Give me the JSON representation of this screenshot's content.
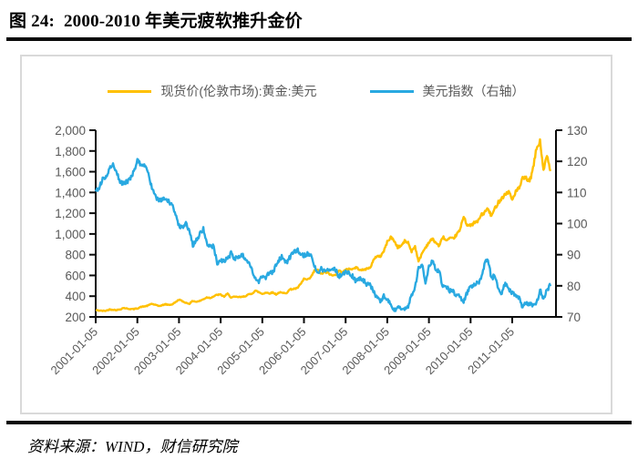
{
  "page": {
    "title": "图 24:  2000-2010 年美元疲软推升金价",
    "source": "资料来源：WIND，财信研究院"
  },
  "chart_data": {
    "type": "line",
    "title": "图 24: 2000-2010 年美元疲软推升金价",
    "x_unit": "month",
    "x_range": [
      "2001-01",
      "2011-12"
    ],
    "x_tick_labels": [
      "2001-01-05",
      "2002-01-05",
      "2003-01-05",
      "2004-01-05",
      "2005-01-05",
      "2006-01-05",
      "2007-01-05",
      "2008-01-05",
      "2009-01-05",
      "2010-01-05",
      "2011-01-05"
    ],
    "left_axis": {
      "min": 200,
      "max": 2000,
      "step": 200,
      "tick_labels": [
        "2,000",
        "1,800",
        "1,600",
        "1,400",
        "1,200",
        "1,000",
        "800",
        "600",
        "400",
        "200"
      ]
    },
    "right_axis": {
      "min": 70,
      "max": 130,
      "step": 10,
      "tick_labels": [
        "130",
        "120",
        "110",
        "100",
        "90",
        "80",
        "70"
      ]
    },
    "colors": {
      "gold": "#FFC000",
      "usd_index": "#29A9E1",
      "axis": "#0a0a0a",
      "tick_text": "#595959"
    },
    "legend_position": "top-center",
    "grid": false,
    "series": [
      {
        "name": "现货价(伦敦市场):黄金:美元",
        "color": "#FFC000",
        "axis": "left",
        "monthly_values": [
          265,
          262,
          258,
          260,
          272,
          270,
          266,
          272,
          287,
          280,
          276,
          276,
          282,
          296,
          301,
          308,
          327,
          318,
          306,
          310,
          322,
          317,
          320,
          342,
          368,
          350,
          336,
          328,
          355,
          346,
          354,
          370,
          388,
          384,
          398,
          414,
          414,
          396,
          423,
          388,
          393,
          392,
          391,
          400,
          415,
          425,
          453,
          438,
          422,
          435,
          428,
          435,
          418,
          437,
          429,
          433,
          466,
          470,
          476,
          513,
          568,
          556,
          582,
          644,
          653,
          613,
          632,
          623,
          599,
          603,
          646,
          632,
          651,
          665,
          661,
          677,
          659,
          650,
          665,
          672,
          743,
          789,
          783,
          834,
          923,
          971,
          933,
          871,
          885,
          930,
          918,
          833,
          884,
          730,
          814,
          869,
          919,
          952,
          916,
          883,
          975,
          934,
          953,
          955,
          995,
          1040,
          1175,
          1087,
          1078,
          1108,
          1115,
          1179,
          1207,
          1244,
          1169,
          1246,
          1307,
          1346,
          1383,
          1410,
          1327,
          1411,
          1439,
          1535,
          1536,
          1505,
          1628,
          1826,
          1890,
          1620,
          1750,
          1600
        ]
      },
      {
        "name": "美元指数（右轴）",
        "color": "#29A9E1",
        "axis": "right",
        "monthly_values": [
          110.5,
          111.5,
          114.5,
          114.8,
          117.5,
          118.8,
          116.6,
          113.4,
          113.0,
          113.5,
          114.3,
          116.7,
          120.2,
          119.2,
          118.8,
          116.5,
          112.5,
          108.8,
          107.5,
          107.3,
          108.2,
          107.0,
          106.3,
          102.3,
          99.6,
          98.6,
          100.2,
          97.0,
          93.1,
          94.7,
          96.5,
          98.5,
          93.4,
          92.4,
          92.6,
          87.4,
          88.4,
          87.9,
          88.7,
          90.5,
          88.8,
          88.9,
          90.1,
          88.9,
          87.8,
          85.0,
          82.0,
          80.9,
          83.4,
          82.5,
          84.2,
          84.2,
          86.6,
          88.9,
          89.4,
          87.2,
          89.2,
          90.7,
          91.7,
          90.6,
          89.7,
          90.2,
          89.4,
          86.1,
          84.0,
          85.4,
          85.0,
          84.9,
          85.7,
          85.3,
          83.1,
          83.4,
          84.9,
          83.9,
          83.1,
          81.4,
          82.2,
          81.9,
          80.7,
          80.7,
          78.0,
          76.5,
          75.0,
          76.7,
          75.5,
          73.7,
          72.0,
          72.8,
          72.9,
          72.5,
          73.4,
          77.2,
          79.5,
          85.5,
          86.9,
          81.2,
          85.8,
          88.1,
          85.4,
          84.6,
          79.3,
          80.0,
          78.3,
          78.1,
          76.7,
          76.4,
          75.0,
          77.9,
          79.5,
          80.4,
          81.1,
          81.9,
          87.0,
          88.5,
          82.5,
          83.2,
          78.7,
          77.3,
          81.2,
          79.0,
          77.7,
          76.9,
          75.9,
          73.0,
          74.6,
          74.3,
          73.9,
          74.1,
          78.6,
          76.2,
          78.4,
          80.2
        ]
      }
    ]
  }
}
